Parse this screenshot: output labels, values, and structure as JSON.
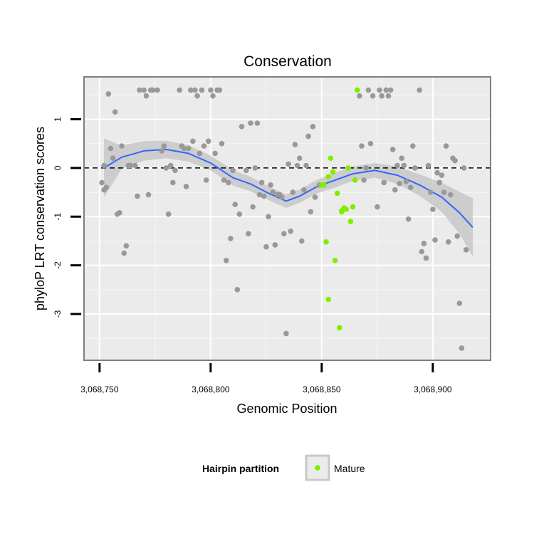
{
  "chart_data": {
    "type": "scatter",
    "title": "Conservation",
    "xlabel": "Genomic Position",
    "ylabel": "phyloP LRT conservation scores",
    "xlim": [
      3068743,
      3068926
    ],
    "ylim": [
      -3.95,
      1.87
    ],
    "x_ticks": [
      3068750,
      3068800,
      3068850,
      3068900
    ],
    "x_tick_labels": [
      "3,068,750",
      "3,068,800",
      "3,068,850",
      "3,068,900"
    ],
    "y_ticks": [
      1,
      0,
      -1,
      -2,
      -3
    ],
    "y_tick_labels": [
      "1",
      "0",
      "-1",
      "-2",
      "-3"
    ],
    "reference_line": {
      "y": 0,
      "style": "dashed"
    },
    "grid": true,
    "legend": {
      "title": "Hairpin partition",
      "entries": [
        "Mature"
      ],
      "position": "bottom"
    },
    "colors": {
      "background": "#ebebeb",
      "other_points": "#999999",
      "mature_points": "#80ee00",
      "smooth_line": "#3366ff",
      "ribbon": "#c8c8c8"
    },
    "series": [
      {
        "name": "",
        "color": "#999999",
        "points": [
          [
            3068752,
            0.05
          ],
          [
            3068751,
            -0.3
          ],
          [
            3068752,
            -0.45
          ],
          [
            3068753,
            -0.4
          ],
          [
            3068754,
            1.52
          ],
          [
            3068755,
            0.4
          ],
          [
            3068756,
            0.2
          ],
          [
            3068757,
            1.15
          ],
          [
            3068758,
            -0.95
          ],
          [
            3068759,
            -0.92
          ],
          [
            3068760,
            0.45
          ],
          [
            3068761,
            -1.75
          ],
          [
            3068762,
            -1.6
          ],
          [
            3068763,
            0.05
          ],
          [
            3068764,
            0.05
          ],
          [
            3068766,
            0.05
          ],
          [
            3068767,
            -0.58
          ],
          [
            3068768,
            1.6
          ],
          [
            3068770,
            1.6
          ],
          [
            3068771,
            1.48
          ],
          [
            3068772,
            -0.55
          ],
          [
            3068773,
            1.6
          ],
          [
            3068774,
            1.6
          ],
          [
            3068776,
            1.6
          ],
          [
            3068778,
            0.35
          ],
          [
            3068779,
            0.45
          ],
          [
            3068780,
            0.0
          ],
          [
            3068781,
            -0.95
          ],
          [
            3068782,
            0.05
          ],
          [
            3068783,
            -0.3
          ],
          [
            3068784,
            -0.05
          ],
          [
            3068786,
            1.6
          ],
          [
            3068787,
            0.45
          ],
          [
            3068788,
            0.4
          ],
          [
            3068789,
            -0.38
          ],
          [
            3068790,
            0.4
          ],
          [
            3068791,
            1.6
          ],
          [
            3068792,
            0.55
          ],
          [
            3068793,
            1.6
          ],
          [
            3068794,
            1.48
          ],
          [
            3068795,
            0.3
          ],
          [
            3068796,
            1.6
          ],
          [
            3068797,
            0.45
          ],
          [
            3068798,
            -0.25
          ],
          [
            3068799,
            0.55
          ],
          [
            3068800,
            1.6
          ],
          [
            3068801,
            1.48
          ],
          [
            3068802,
            0.3
          ],
          [
            3068803,
            1.6
          ],
          [
            3068804,
            1.6
          ],
          [
            3068805,
            0.5
          ],
          [
            3068806,
            -0.25
          ],
          [
            3068807,
            -1.9
          ],
          [
            3068808,
            -0.3
          ],
          [
            3068809,
            -1.45
          ],
          [
            3068810,
            -0.05
          ],
          [
            3068811,
            -0.75
          ],
          [
            3068812,
            -2.5
          ],
          [
            3068813,
            -0.95
          ],
          [
            3068814,
            0.85
          ],
          [
            3068816,
            -0.05
          ],
          [
            3068817,
            -1.35
          ],
          [
            3068818,
            0.92
          ],
          [
            3068819,
            -0.8
          ],
          [
            3068820,
            0.0
          ],
          [
            3068821,
            0.92
          ],
          [
            3068822,
            -0.55
          ],
          [
            3068823,
            -0.3
          ],
          [
            3068824,
            -0.58
          ],
          [
            3068825,
            -1.62
          ],
          [
            3068826,
            -1.0
          ],
          [
            3068827,
            -0.35
          ],
          [
            3068828,
            -0.5
          ],
          [
            3068829,
            -1.58
          ],
          [
            3068830,
            -0.55
          ],
          [
            3068831,
            -0.55
          ],
          [
            3068832,
            -0.6
          ],
          [
            3068833,
            -1.35
          ],
          [
            3068834,
            -3.4
          ],
          [
            3068835,
            0.08
          ],
          [
            3068836,
            -1.3
          ],
          [
            3068837,
            -0.5
          ],
          [
            3068838,
            0.48
          ],
          [
            3068839,
            0.05
          ],
          [
            3068840,
            0.2
          ],
          [
            3068841,
            -1.5
          ],
          [
            3068842,
            -0.45
          ],
          [
            3068843,
            0.05
          ],
          [
            3068844,
            0.65
          ],
          [
            3068845,
            -0.9
          ],
          [
            3068846,
            0.85
          ],
          [
            3068847,
            -0.6
          ],
          [
            3068849,
            -0.35
          ],
          [
            3068867,
            1.48
          ],
          [
            3068868,
            0.45
          ],
          [
            3068869,
            -0.25
          ],
          [
            3068870,
            0.0
          ],
          [
            3068871,
            1.6
          ],
          [
            3068872,
            0.5
          ],
          [
            3068873,
            1.48
          ],
          [
            3068875,
            -0.8
          ],
          [
            3068876,
            1.6
          ],
          [
            3068877,
            1.48
          ],
          [
            3068878,
            -0.3
          ],
          [
            3068879,
            1.6
          ],
          [
            3068880,
            1.48
          ],
          [
            3068881,
            1.6
          ],
          [
            3068882,
            0.38
          ],
          [
            3068883,
            -0.45
          ],
          [
            3068884,
            0.05
          ],
          [
            3068885,
            -0.32
          ],
          [
            3068886,
            0.2
          ],
          [
            3068887,
            0.05
          ],
          [
            3068888,
            -0.28
          ],
          [
            3068889,
            -1.05
          ],
          [
            3068890,
            -0.4
          ],
          [
            3068891,
            0.45
          ],
          [
            3068892,
            0.0
          ],
          [
            3068894,
            1.6
          ],
          [
            3068895,
            -1.72
          ],
          [
            3068896,
            -1.55
          ],
          [
            3068897,
            -1.85
          ],
          [
            3068898,
            0.05
          ],
          [
            3068899,
            -0.5
          ],
          [
            3068900,
            -0.85
          ],
          [
            3068901,
            -1.48
          ],
          [
            3068902,
            -0.1
          ],
          [
            3068903,
            -0.3
          ],
          [
            3068904,
            -0.15
          ],
          [
            3068905,
            -0.5
          ],
          [
            3068906,
            0.45
          ],
          [
            3068907,
            -1.52
          ],
          [
            3068908,
            -0.55
          ],
          [
            3068909,
            0.2
          ],
          [
            3068910,
            0.15
          ],
          [
            3068911,
            -1.4
          ],
          [
            3068912,
            -2.78
          ],
          [
            3068913,
            -3.7
          ],
          [
            3068914,
            0.0
          ],
          [
            3068915,
            -1.68
          ]
        ]
      },
      {
        "name": "Mature",
        "color": "#80ee00",
        "points": [
          [
            3068850,
            -0.35
          ],
          [
            3068851,
            -0.35
          ],
          [
            3068852,
            -1.52
          ],
          [
            3068853,
            -0.18
          ],
          [
            3068853,
            -2.7
          ],
          [
            3068854,
            0.2
          ],
          [
            3068855,
            -0.08
          ],
          [
            3068856,
            -1.9
          ],
          [
            3068857,
            -0.52
          ],
          [
            3068858,
            -3.28
          ],
          [
            3068859,
            -0.9
          ],
          [
            3068859,
            -0.88
          ],
          [
            3068860,
            -0.82
          ],
          [
            3068861,
            -0.85
          ],
          [
            3068862,
            0.0
          ],
          [
            3068863,
            -1.1
          ],
          [
            3068864,
            -0.8
          ],
          [
            3068865,
            -0.25
          ],
          [
            3068866,
            1.6
          ]
        ]
      }
    ],
    "smooth": {
      "x": [
        3068752,
        3068760,
        3068770,
        3068780,
        3068790,
        3068800,
        3068810,
        3068818,
        3068826,
        3068834,
        3068840,
        3068848,
        3068856,
        3068864,
        3068874,
        3068884,
        3068894,
        3068904,
        3068912,
        3068918
      ],
      "y": [
        0.0,
        0.22,
        0.35,
        0.38,
        0.3,
        0.1,
        -0.2,
        -0.33,
        -0.52,
        -0.68,
        -0.58,
        -0.38,
        -0.25,
        -0.12,
        -0.05,
        -0.15,
        -0.35,
        -0.6,
        -0.92,
        -1.22
      ],
      "lower": [
        -0.6,
        -0.02,
        0.15,
        0.2,
        0.13,
        -0.05,
        -0.36,
        -0.48,
        -0.66,
        -0.82,
        -0.72,
        -0.52,
        -0.4,
        -0.27,
        -0.2,
        -0.33,
        -0.57,
        -0.9,
        -1.35,
        -1.82
      ],
      "upper": [
        0.6,
        0.46,
        0.55,
        0.56,
        0.47,
        0.25,
        -0.04,
        -0.18,
        -0.38,
        -0.54,
        -0.44,
        -0.24,
        -0.1,
        0.03,
        0.1,
        0.03,
        -0.13,
        -0.3,
        -0.49,
        -0.62
      ]
    }
  }
}
